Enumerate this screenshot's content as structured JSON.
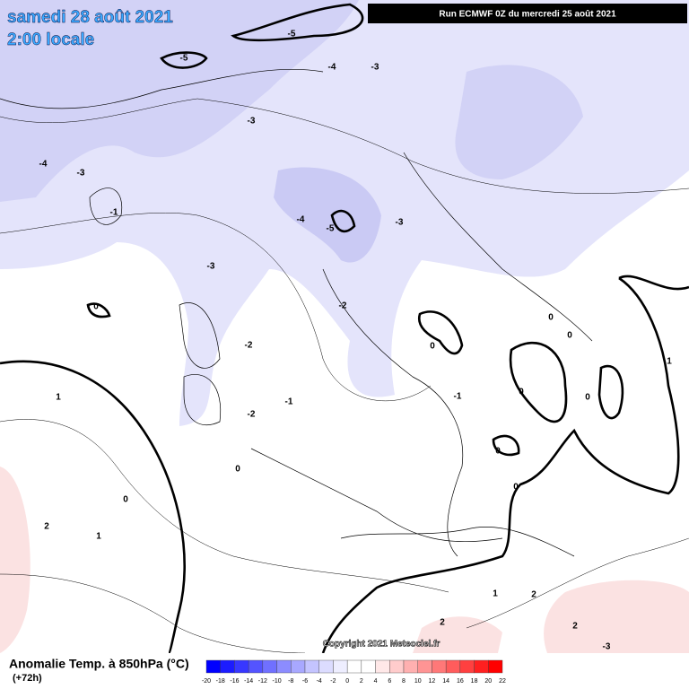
{
  "header": {
    "date": "samedi 28 août 2021",
    "time": "2:00 locale",
    "run": "Run ECMWF 0Z du mercredi 25 août 2021"
  },
  "copyright": "Copyright 2021 Meteociel.fr",
  "footer": {
    "title": "Anomalie Temp. à 850hPa (°C)",
    "lead": "(+72h)"
  },
  "scale": {
    "ticks": [
      -20,
      -18,
      -16,
      -14,
      -12,
      -10,
      -8,
      -6,
      -4,
      -2,
      0,
      2,
      4,
      6,
      8,
      10,
      12,
      14,
      16,
      18,
      20,
      22
    ],
    "colors": [
      "#0000ff",
      "#1c1cff",
      "#3838ff",
      "#5454ff",
      "#7070ff",
      "#8c8cff",
      "#a8a8ff",
      "#c4c4ff",
      "#dcdcff",
      "#eeeeff",
      "#ffffff",
      "#ffffff",
      "#ffe8e8",
      "#ffcccc",
      "#ffb0b0",
      "#ff9494",
      "#ff7878",
      "#ff5c5c",
      "#ff4040",
      "#ff2020",
      "#ff0000"
    ]
  },
  "contour_labels": [
    -5,
    -5,
    -5,
    -3,
    -3,
    -3,
    -3,
    -3,
    -4,
    -4,
    -4,
    -1,
    -1,
    -1,
    -2,
    -2,
    -2,
    0,
    0,
    0,
    0,
    0,
    0,
    0,
    0,
    0,
    0,
    1,
    1,
    1,
    1,
    2,
    2,
    2,
    2,
    -3
  ]
}
